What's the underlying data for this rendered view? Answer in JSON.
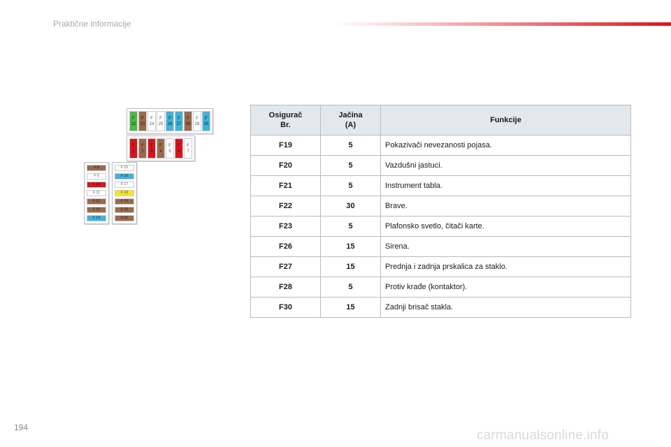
{
  "header": {
    "title": "Praktične informacije",
    "accent_color": "#d8141c"
  },
  "page_number": "194",
  "watermark": "carmanualsonline.info",
  "diagram": {
    "top_row": [
      {
        "label": "F",
        "num": "22",
        "color": "#4db848"
      },
      {
        "label": "F",
        "num": "23",
        "color": "#9a6a4a"
      },
      {
        "label": "F",
        "num": "24",
        "color": "#ffffff"
      },
      {
        "label": "F",
        "num": "25",
        "color": "#ffffff"
      },
      {
        "label": "F",
        "num": "26",
        "color": "#3fb3d9"
      },
      {
        "label": "F",
        "num": "27",
        "color": "#3fb3d9"
      },
      {
        "label": "F",
        "num": "28",
        "color": "#9a6a4a"
      },
      {
        "label": "F",
        "num": "29",
        "color": "#ffffff"
      },
      {
        "label": "F",
        "num": "30",
        "color": "#3fb3d9"
      }
    ],
    "mid_row": [
      {
        "label": "F",
        "num": "1",
        "color": "#d8141c"
      },
      {
        "label": "F",
        "num": "2",
        "color": "#9a6a4a"
      },
      {
        "label": "F",
        "num": "3",
        "color": "#d8141c"
      },
      {
        "label": "F",
        "num": "4",
        "color": "#9a6a4a"
      },
      {
        "label": "F",
        "num": "5",
        "color": "#ffffff"
      },
      {
        "label": "F",
        "num": "6",
        "color": "#d8141c"
      },
      {
        "label": "F",
        "num": "7",
        "color": "#ffffff"
      }
    ],
    "left_col": [
      {
        "label": "F 8",
        "color": "#9a6a4a"
      },
      {
        "label": "F 9",
        "color": "#ffffff"
      },
      {
        "label": "F 10",
        "color": "#d8141c"
      },
      {
        "label": "F 11",
        "color": "#ffffff"
      },
      {
        "label": "F 12",
        "color": "#9a6a4a"
      },
      {
        "label": "F 13",
        "color": "#9a6a4a"
      },
      {
        "label": "F 14",
        "color": "#3fb3d9"
      }
    ],
    "right_col": [
      {
        "label": "F 15",
        "color": "#ffffff"
      },
      {
        "label": "F 16",
        "color": "#3fb3d9"
      },
      {
        "label": "F 17",
        "color": "#ffffff"
      },
      {
        "label": "F 18",
        "color": "#f4e81a"
      },
      {
        "label": "F 19",
        "color": "#9a6a4a"
      },
      {
        "label": "F 20",
        "color": "#9a6a4a"
      },
      {
        "label": "F 21",
        "color": "#9a6a4a"
      }
    ]
  },
  "table": {
    "headers": {
      "fuse_line1": "Osigurač",
      "fuse_line2": "Br.",
      "amp_line1": "Jačina",
      "amp_line2": "(A)",
      "function": "Funkcije"
    },
    "rows": [
      {
        "fuse": "F19",
        "amps": "5",
        "function": "Pokazivači nevezanosti pojasa."
      },
      {
        "fuse": "F20",
        "amps": "5",
        "function": "Vazdušni jastuci."
      },
      {
        "fuse": "F21",
        "amps": "5",
        "function": "Instrument tabla."
      },
      {
        "fuse": "F22",
        "amps": "30",
        "function": "Brave."
      },
      {
        "fuse": "F23",
        "amps": "5",
        "function": "Plafonsko svetlo, čitači karte."
      },
      {
        "fuse": "F26",
        "amps": "15",
        "function": "Sirena."
      },
      {
        "fuse": "F27",
        "amps": "15",
        "function": "Prednja i zadnja prskalica za staklo."
      },
      {
        "fuse": "F28",
        "amps": "5",
        "function": "Protiv krađe (kontaktor)."
      },
      {
        "fuse": "F30",
        "amps": "15",
        "function": "Zadnji brisač stakla."
      }
    ]
  }
}
